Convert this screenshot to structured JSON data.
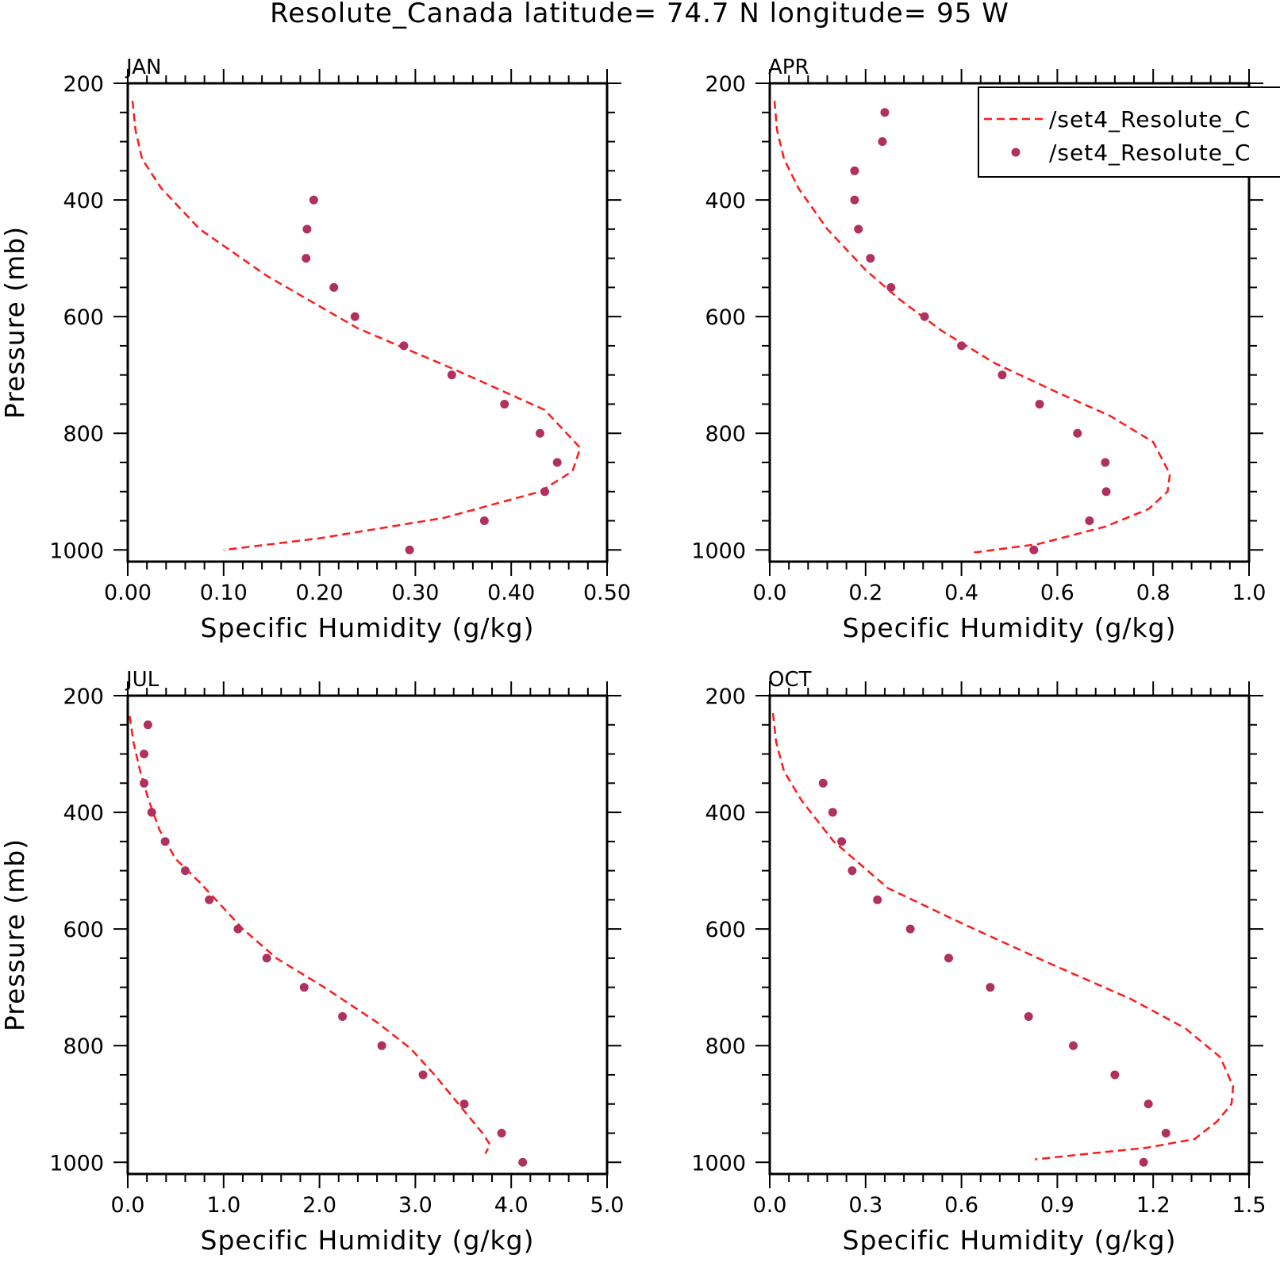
{
  "figure_title": "Resolute_Canada  latitude= 74.7 N longitude= 95 W",
  "colors": {
    "model_line": "#ff1a1a",
    "obs_points": "#b03060",
    "axes": "#000000"
  },
  "legend": {
    "placement": "top-right of APR panel (clipped at figure edge)",
    "entries": [
      {
        "label": "/set4_Resolute_C",
        "style": "dashed-line",
        "color": "#ff1a1a"
      },
      {
        "label": "/set4_Resolute_C",
        "style": "dot",
        "color": "#b03060"
      }
    ]
  },
  "chart_data": [
    {
      "type": "line",
      "panel": "JAN",
      "xlabel": "Specific Humidity (g/kg)",
      "ylabel": "Pressure (mb)",
      "xlim": [
        0.0,
        0.5
      ],
      "ylim": [
        1020,
        200
      ],
      "y_inverted": true,
      "xticks": [
        0.0,
        0.1,
        0.2,
        0.3,
        0.4,
        0.5
      ],
      "xtick_labels": [
        "0.00",
        "0.10",
        "0.20",
        "0.30",
        "0.40",
        "0.50"
      ],
      "yticks": [
        200,
        400,
        600,
        800,
        1000
      ],
      "ytick_labels": [
        "200",
        "400",
        "600",
        "800",
        "1000"
      ],
      "series": [
        {
          "style": "dashed-line",
          "x": [
            0.005,
            0.008,
            0.015,
            0.035,
            0.075,
            0.145,
            0.24,
            0.34,
            0.435,
            0.472,
            0.464,
            0.43,
            0.33,
            0.2,
            0.1
          ],
          "y": [
            230,
            280,
            330,
            380,
            450,
            530,
            620,
            690,
            760,
            825,
            865,
            900,
            945,
            980,
            1000
          ]
        },
        {
          "style": "points",
          "x": [
            0.194,
            0.187,
            0.186,
            0.215,
            0.237,
            0.288,
            0.338,
            0.393,
            0.43,
            0.448,
            0.435,
            0.372,
            0.294
          ],
          "y": [
            400,
            450,
            500,
            550,
            600,
            650,
            700,
            750,
            800,
            850,
            900,
            950,
            1000
          ]
        }
      ]
    },
    {
      "type": "line",
      "panel": "APR",
      "xlabel": "Specific Humidity (g/kg)",
      "ylabel": "",
      "xlim": [
        0.0,
        1.0
      ],
      "ylim": [
        1020,
        200
      ],
      "y_inverted": true,
      "xticks": [
        0.0,
        0.2,
        0.4,
        0.6,
        0.8,
        1.0
      ],
      "xtick_labels": [
        "0.0",
        "0.2",
        "0.4",
        "0.6",
        "0.8",
        "1.0"
      ],
      "yticks": [
        200,
        400,
        600,
        800,
        1000
      ],
      "ytick_labels": [
        "200",
        "400",
        "600",
        "800",
        "1000"
      ],
      "series": [
        {
          "style": "dashed-line",
          "x": [
            0.01,
            0.015,
            0.03,
            0.06,
            0.12,
            0.2,
            0.27,
            0.36,
            0.47,
            0.6,
            0.71,
            0.8,
            0.835,
            0.83,
            0.79,
            0.7,
            0.56,
            0.42
          ],
          "y": [
            230,
            280,
            330,
            380,
            450,
            520,
            570,
            625,
            680,
            730,
            770,
            815,
            870,
            900,
            930,
            960,
            990,
            1005
          ]
        },
        {
          "style": "points",
          "x": [
            0.24,
            0.235,
            0.177,
            0.177,
            0.185,
            0.21,
            0.253,
            0.323,
            0.4,
            0.485,
            0.563,
            0.642,
            0.7,
            0.702,
            0.667,
            0.551
          ],
          "y": [
            250,
            300,
            350,
            400,
            450,
            500,
            550,
            600,
            650,
            700,
            750,
            800,
            850,
            900,
            950,
            1000
          ]
        }
      ]
    },
    {
      "type": "line",
      "panel": "JUL",
      "xlabel": "Specific Humidity (g/kg)",
      "ylabel": "Pressure (mb)",
      "xlim": [
        0.0,
        5.0
      ],
      "ylim": [
        1020,
        200
      ],
      "y_inverted": true,
      "xticks": [
        0.0,
        1.0,
        2.0,
        3.0,
        4.0,
        5.0
      ],
      "xtick_labels": [
        "0.0",
        "1.0",
        "2.0",
        "3.0",
        "4.0",
        "5.0"
      ],
      "yticks": [
        200,
        400,
        600,
        800,
        1000
      ],
      "ytick_labels": [
        "200",
        "400",
        "600",
        "800",
        "1000"
      ],
      "series": [
        {
          "style": "dashed-line",
          "x": [
            0.02,
            0.06,
            0.13,
            0.22,
            0.33,
            0.5,
            0.75,
            0.92,
            1.2,
            1.55,
            2.05,
            2.6,
            2.95,
            3.2,
            3.45,
            3.7,
            3.78,
            3.73
          ],
          "y": [
            235,
            280,
            330,
            380,
            430,
            480,
            520,
            550,
            600,
            650,
            700,
            760,
            805,
            850,
            900,
            950,
            970,
            985
          ]
        },
        {
          "style": "points",
          "x": [
            0.21,
            0.17,
            0.17,
            0.25,
            0.39,
            0.6,
            0.85,
            1.15,
            1.45,
            1.84,
            2.24,
            2.65,
            3.08,
            3.51,
            3.9,
            4.12
          ],
          "y": [
            250,
            300,
            350,
            400,
            450,
            500,
            550,
            600,
            650,
            700,
            750,
            800,
            850,
            900,
            950,
            1000
          ]
        }
      ]
    },
    {
      "type": "line",
      "panel": "OCT",
      "xlabel": "Specific Humidity (g/kg)",
      "ylabel": "",
      "xlim": [
        0.0,
        1.5
      ],
      "ylim": [
        1020,
        200
      ],
      "y_inverted": true,
      "xticks": [
        0.0,
        0.3,
        0.6,
        0.9,
        1.2,
        1.5
      ],
      "xtick_labels": [
        "0.0",
        "0.3",
        "0.6",
        "0.9",
        "1.2",
        "1.5"
      ],
      "yticks": [
        200,
        400,
        600,
        800,
        1000
      ],
      "ytick_labels": [
        "200",
        "400",
        "600",
        "800",
        "1000"
      ],
      "series": [
        {
          "style": "dashed-line",
          "x": [
            0.01,
            0.02,
            0.045,
            0.1,
            0.2,
            0.37,
            0.6,
            0.88,
            1.13,
            1.3,
            1.41,
            1.45,
            1.445,
            1.4,
            1.33,
            1.18,
            1.0,
            0.83
          ],
          "y": [
            230,
            280,
            330,
            380,
            450,
            530,
            590,
            660,
            720,
            770,
            820,
            870,
            900,
            930,
            960,
            975,
            985,
            995
          ]
        },
        {
          "style": "points",
          "x": [
            0.167,
            0.197,
            0.225,
            0.258,
            0.337,
            0.44,
            0.56,
            0.69,
            0.81,
            0.95,
            1.08,
            1.185,
            1.24,
            1.17
          ],
          "y": [
            350,
            400,
            450,
            500,
            550,
            600,
            650,
            700,
            750,
            800,
            850,
            900,
            950,
            1000
          ]
        }
      ]
    }
  ]
}
